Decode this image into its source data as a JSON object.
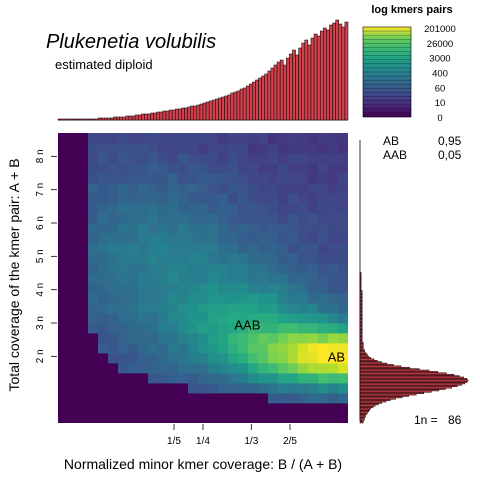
{
  "chart_data": {
    "type": "heatmap",
    "title": "Plukenetia volubilis",
    "subtitle": "estimated diploid",
    "xlabel": "Normalized minor kmer coverage: B / (A + B)",
    "ylabel": "Total coverage of the kmer pair: A + B",
    "x_range": [
      0,
      0.5
    ],
    "y_range_n": [
      0,
      8.7
    ],
    "x_ticks": [
      {
        "value": 0.2,
        "label": "1/5"
      },
      {
        "value": 0.25,
        "label": "1/4"
      },
      {
        "value": 0.3333,
        "label": "1/3"
      },
      {
        "value": 0.4,
        "label": "2/5"
      }
    ],
    "y_ticks": [
      {
        "value": 2,
        "label": "2 n"
      },
      {
        "value": 3,
        "label": "3 n"
      },
      {
        "value": 4,
        "label": "4 n"
      },
      {
        "value": 5,
        "label": "5 n"
      },
      {
        "value": 6,
        "label": "6 n"
      },
      {
        "value": 7,
        "label": "7 n"
      },
      {
        "value": 8,
        "label": "8 n"
      }
    ],
    "peak_labels": [
      {
        "label": "AB",
        "x": 0.48,
        "y_n": 2.0
      },
      {
        "label": "AAB",
        "x": 0.33,
        "y_n": 2.95
      }
    ],
    "legend": {
      "title": "log kmers pairs",
      "ticks": [
        "201000",
        "26000",
        "3000",
        "400",
        "60",
        "10",
        "0"
      ]
    },
    "proportions": [
      {
        "label": "AB",
        "value": "0,95"
      },
      {
        "label": "AAB",
        "value": "0,05"
      }
    ],
    "one_n": {
      "label": "1n =",
      "value": "86"
    },
    "top_marginal": [
      0.01,
      0.01,
      0.01,
      0.01,
      0.01,
      0.01,
      0.01,
      0.01,
      0.01,
      0.01,
      0.01,
      0.01,
      0.01,
      0.02,
      0.02,
      0.02,
      0.02,
      0.02,
      0.03,
      0.03,
      0.03,
      0.03,
      0.04,
      0.04,
      0.04,
      0.05,
      0.05,
      0.06,
      0.06,
      0.06,
      0.07,
      0.07,
      0.08,
      0.08,
      0.09,
      0.09,
      0.1,
      0.1,
      0.11,
      0.11,
      0.12,
      0.12,
      0.13,
      0.14,
      0.14,
      0.15,
      0.16,
      0.17,
      0.18,
      0.19,
      0.2,
      0.21,
      0.22,
      0.23,
      0.24,
      0.25,
      0.27,
      0.28,
      0.29,
      0.31,
      0.32,
      0.34,
      0.36,
      0.38,
      0.4,
      0.42,
      0.44,
      0.46,
      0.49,
      0.52,
      0.55,
      0.58,
      0.6,
      0.55,
      0.62,
      0.66,
      0.7,
      0.65,
      0.72,
      0.77,
      0.8,
      0.75,
      0.82,
      0.86,
      0.84,
      0.89,
      0.92,
      0.9,
      0.95,
      0.97,
      1.0,
      0.96,
      0.93,
      0.98
    ],
    "right_marginal": [
      0,
      0,
      0,
      0,
      0,
      0,
      0,
      0,
      0,
      0,
      0,
      0,
      0,
      0,
      0,
      0,
      0,
      0,
      0,
      0,
      0,
      0,
      0,
      0,
      0,
      0,
      0,
      0,
      0,
      0,
      0,
      0,
      0,
      0,
      0,
      0,
      0,
      0,
      0,
      0,
      0,
      0,
      0,
      0,
      0,
      0,
      0,
      0,
      0,
      0,
      0,
      0,
      0,
      0,
      0,
      0,
      0,
      0,
      0,
      0,
      0,
      0,
      0,
      0,
      0,
      0,
      0,
      0,
      0,
      0,
      0,
      0,
      0,
      0,
      0,
      0,
      0,
      0,
      0,
      0,
      0,
      0,
      0,
      0,
      0,
      0,
      0,
      0,
      0,
      0,
      0,
      0,
      0,
      0,
      0,
      0,
      0,
      0,
      0,
      0,
      0.01,
      0.01,
      0.01,
      0.01,
      0.01,
      0.01,
      0.01,
      0.01,
      0.01,
      0.01,
      0.01,
      0.01,
      0.01,
      0.02,
      0.02,
      0.02,
      0.02,
      0.02,
      0.02,
      0.02,
      0.02,
      0.02,
      0.02,
      0.02,
      0.02,
      0.02,
      0.02,
      0.02,
      0.02,
      0.02,
      0.02,
      0.02,
      0.02,
      0.02,
      0.02,
      0.02,
      0.02,
      0.02,
      0.02,
      0.02,
      0.02,
      0.02,
      0.02,
      0.02,
      0.02,
      0.02,
      0.02,
      0.02,
      0.02,
      0.02,
      0.03,
      0.03,
      0.03,
      0.03,
      0.03,
      0.04,
      0.04,
      0.05,
      0.06,
      0.07,
      0.08,
      0.1,
      0.13,
      0.16,
      0.2,
      0.25,
      0.31,
      0.38,
      0.46,
      0.55,
      0.64,
      0.72,
      0.8,
      0.87,
      0.92,
      0.96,
      0.99,
      1.0,
      0.99,
      0.97,
      0.94,
      0.9,
      0.85,
      0.79,
      0.73,
      0.66,
      0.59,
      0.52,
      0.45,
      0.39,
      0.33,
      0.28,
      0.24,
      0.2,
      0.17,
      0.14,
      0.12,
      0.1,
      0.09,
      0.08,
      0.07,
      0.06,
      0.05,
      0.05,
      0.04,
      0.04,
      0.03,
      0.03
    ]
  }
}
